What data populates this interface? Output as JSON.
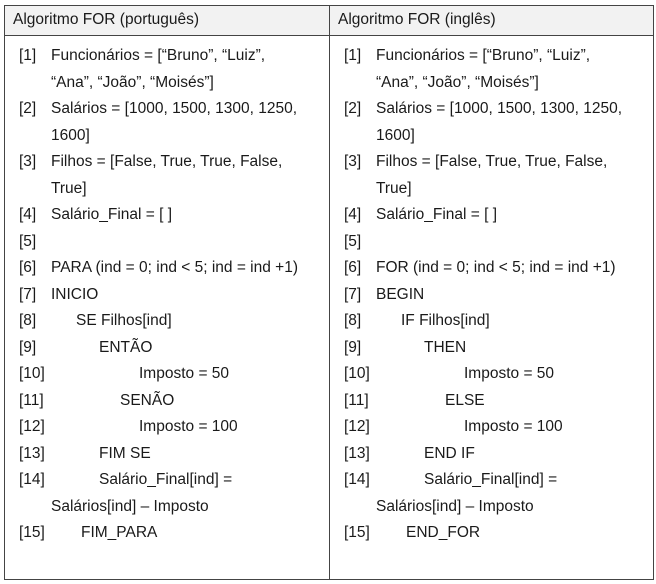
{
  "header": {
    "left": "Algoritmo FOR (português)",
    "right": "Algoritmo FOR (inglês)"
  },
  "left_lines": [
    {
      "n": "[1]",
      "t": "Funcionários = [“Bruno”, “Luiz”,",
      "i": 0
    },
    {
      "n": "",
      "t": "“Ana”, “João”, “Moisés”]",
      "i": 0
    },
    {
      "n": "[2]",
      "t": "Salários = [1000, 1500, 1300, 1250,",
      "i": 0
    },
    {
      "n": "",
      "t": "1600]",
      "i": 0
    },
    {
      "n": "[3]",
      "t": "Filhos = [False, True, True, False,",
      "i": 0
    },
    {
      "n": "",
      "t": "True]",
      "i": 0
    },
    {
      "n": "[4]",
      "t": "Salário_Final = [ ]",
      "i": 0
    },
    {
      "n": "[5]",
      "t": "",
      "i": 0
    },
    {
      "n": "[6]",
      "t": "PARA (ind = 0; ind < 5; ind = ind +1)",
      "i": 0
    },
    {
      "n": "[7]",
      "t": "INICIO",
      "i": 0
    },
    {
      "n": "[8]",
      "t": "SE Filhos[ind]",
      "i": 1
    },
    {
      "n": "[9]",
      "t": "ENTÃO",
      "i": 2
    },
    {
      "n": "[10]",
      "t": "Imposto = 50",
      "i": 3
    },
    {
      "n": "[11]",
      "t": "SENÃO",
      "i": 4
    },
    {
      "n": "[12]",
      "t": "Imposto = 100",
      "i": 3
    },
    {
      "n": "[13]",
      "t": "FIM SE",
      "i": 2
    },
    {
      "n": "[14]",
      "t": "Salário_Final[ind] =",
      "i": 2
    },
    {
      "n": "",
      "t": "Salários[ind] – Imposto",
      "i": 0
    },
    {
      "n": "[15]",
      "t": "FIM_PARA",
      "i": 5
    }
  ],
  "right_lines": [
    {
      "n": "[1]",
      "t": "Funcionários = [“Bruno”, “Luiz”,",
      "i": 0
    },
    {
      "n": "",
      "t": "“Ana”, “João”, “Moisés”]",
      "i": 0
    },
    {
      "n": "[2]",
      "t": "Salários = [1000, 1500, 1300, 1250,",
      "i": 0
    },
    {
      "n": "",
      "t": "1600]",
      "i": 0
    },
    {
      "n": "[3]",
      "t": "Filhos = [False, True, True, False,",
      "i": 0
    },
    {
      "n": "",
      "t": "True]",
      "i": 0
    },
    {
      "n": "[4]",
      "t": "Salário_Final = [ ]",
      "i": 0
    },
    {
      "n": "[5]",
      "t": "",
      "i": 0
    },
    {
      "n": "[6]",
      "t": "FOR (ind = 0; ind < 5; ind = ind +1)",
      "i": 0
    },
    {
      "n": "[7]",
      "t": "BEGIN",
      "i": 0
    },
    {
      "n": "[8]",
      "t": "IF Filhos[ind]",
      "i": 1
    },
    {
      "n": "[9]",
      "t": "THEN",
      "i": 2
    },
    {
      "n": "[10]",
      "t": "Imposto = 50",
      "i": 3
    },
    {
      "n": "[11]",
      "t": "ELSE",
      "i": 4
    },
    {
      "n": "[12]",
      "t": "Imposto = 100",
      "i": 3
    },
    {
      "n": "[13]",
      "t": "END IF",
      "i": 2
    },
    {
      "n": "[14]",
      "t": "Salário_Final[ind] =",
      "i": 2
    },
    {
      "n": "",
      "t": "Salários[ind] – Imposto",
      "i": 0
    },
    {
      "n": "[15]",
      "t": "END_FOR",
      "i": 5
    }
  ]
}
